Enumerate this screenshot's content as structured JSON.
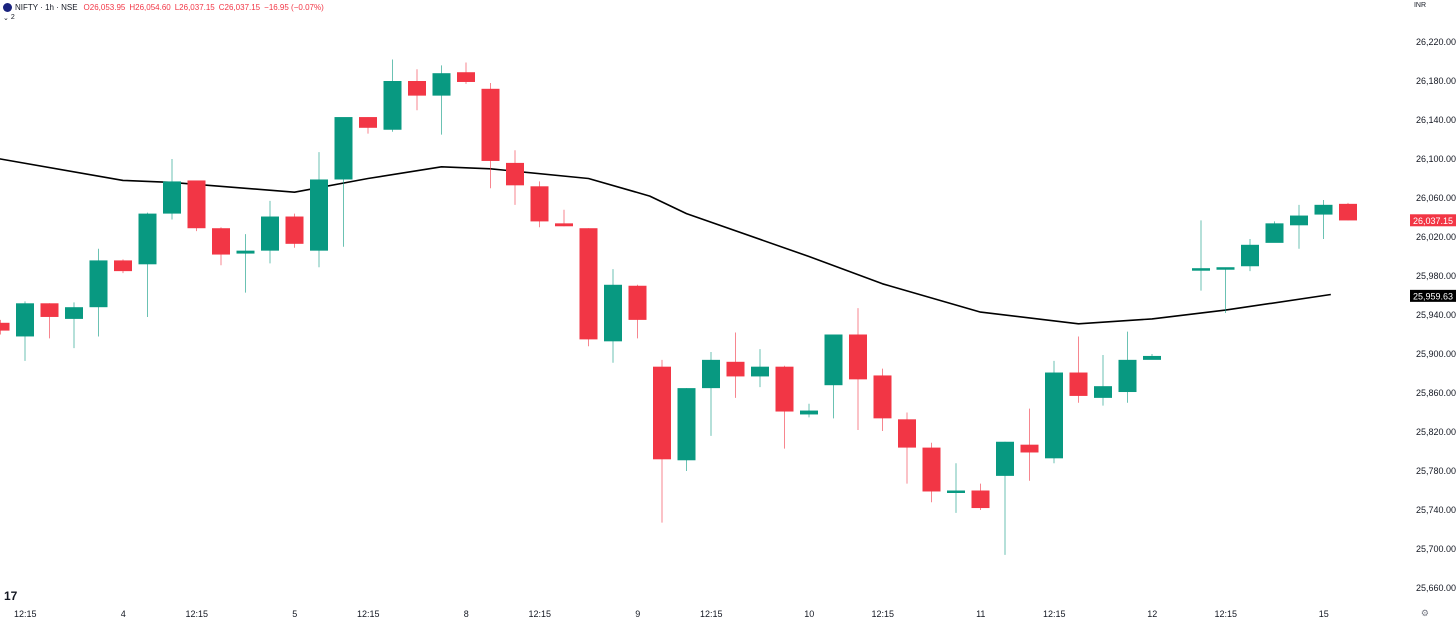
{
  "header": {
    "symbol": "NIFTY · 1h · NSE",
    "open": "O26,053.95",
    "high": "H26,054.60",
    "low": "L26,037.15",
    "close": "C26,037.15",
    "change": "−16.95 (−0.07%)",
    "indicator_count": "2",
    "currency": "INR"
  },
  "colors": {
    "up": "#089981",
    "down": "#f23645",
    "ma": "#000000",
    "axis_text": "#131722"
  },
  "chart_data": {
    "type": "candlestick",
    "y_axis": {
      "min": 25645,
      "max": 26240,
      "ticks": [
        25660,
        25700,
        25740,
        25780,
        25820,
        25860,
        25900,
        25940,
        25980,
        26020,
        26060,
        26100,
        26140,
        26180,
        26220
      ],
      "tick_labels": [
        "25,660.00",
        "25,700.00",
        "25,740.00",
        "25,780.00",
        "25,820.00",
        "25,860.00",
        "25,900.00",
        "25,940.00",
        "25,980.00",
        "26,020.00",
        "26,060.00",
        "26,100.00",
        "26,140.00",
        "26,180.00",
        "26,220.00"
      ]
    },
    "x_axis": {
      "labels": [
        {
          "text": "12:15",
          "at": 1.5
        },
        {
          "text": "4",
          "at": 5.5
        },
        {
          "text": "12:15",
          "at": 8.5
        },
        {
          "text": "5",
          "at": 12.5
        },
        {
          "text": "12:15",
          "at": 15.5
        },
        {
          "text": "8",
          "at": 19.5
        },
        {
          "text": "12:15",
          "at": 22.5
        },
        {
          "text": "9",
          "at": 26.5
        },
        {
          "text": "12:15",
          "at": 29.5
        },
        {
          "text": "10",
          "at": 33.5
        },
        {
          "text": "12:15",
          "at": 36.5
        },
        {
          "text": "11",
          "at": 40.5
        },
        {
          "text": "12:15",
          "at": 43.5
        },
        {
          "text": "12",
          "at": 47.5
        },
        {
          "text": "12:15",
          "at": 50.5
        },
        {
          "text": "15",
          "at": 54.5
        }
      ]
    },
    "candles": [
      {
        "o": 25932,
        "h": 25935,
        "l": 25920,
        "c": 25924
      },
      {
        "o": 25918,
        "h": 25954,
        "l": 25893,
        "c": 25952
      },
      {
        "o": 25952,
        "h": 25952,
        "l": 25916,
        "c": 25938
      },
      {
        "o": 25936,
        "h": 25953,
        "l": 25906,
        "c": 25948
      },
      {
        "o": 25948,
        "h": 26008,
        "l": 25918,
        "c": 25996
      },
      {
        "o": 25996,
        "h": 25997,
        "l": 25983,
        "c": 25985
      },
      {
        "o": 25992,
        "h": 26045,
        "l": 25938,
        "c": 26044
      },
      {
        "o": 26044,
        "h": 26100,
        "l": 26038,
        "c": 26077
      },
      {
        "o": 26078,
        "h": 26078,
        "l": 26026,
        "c": 26029
      },
      {
        "o": 26029,
        "h": 26030,
        "l": 25991,
        "c": 26002
      },
      {
        "o": 26003,
        "h": 26023,
        "l": 25963,
        "c": 26006
      },
      {
        "o": 26006,
        "h": 26057,
        "l": 25993,
        "c": 26041
      },
      {
        "o": 26041,
        "h": 26044,
        "l": 26009,
        "c": 26013
      },
      {
        "o": 26006,
        "h": 26107,
        "l": 25989,
        "c": 26079
      },
      {
        "o": 26079,
        "h": 26142,
        "l": 26010,
        "c": 26143
      },
      {
        "o": 26143,
        "h": 26143,
        "l": 26126,
        "c": 26132
      },
      {
        "o": 26130,
        "h": 26202,
        "l": 26128,
        "c": 26180
      },
      {
        "o": 26180,
        "h": 26192,
        "l": 26150,
        "c": 26165
      },
      {
        "o": 26165,
        "h": 26196,
        "l": 26125,
        "c": 26188
      },
      {
        "o": 26189,
        "h": 26199,
        "l": 26177,
        "c": 26179
      },
      {
        "o": 26172,
        "h": 26178,
        "l": 26070,
        "c": 26098
      },
      {
        "o": 26096,
        "h": 26109,
        "l": 26053,
        "c": 26073
      },
      {
        "o": 26072,
        "h": 26077,
        "l": 26030,
        "c": 26036
      },
      {
        "o": 26034,
        "h": 26048,
        "l": 26031,
        "c": 26031
      },
      {
        "o": 26029,
        "h": 26029,
        "l": 25908,
        "c": 25915
      },
      {
        "o": 25913,
        "h": 25987,
        "l": 25891,
        "c": 25971
      },
      {
        "o": 25970,
        "h": 25971,
        "l": 25916,
        "c": 25935
      },
      {
        "o": 25887,
        "h": 25894,
        "l": 25727,
        "c": 25792
      },
      {
        "o": 25791,
        "h": 25865,
        "l": 25780,
        "c": 25865
      },
      {
        "o": 25865,
        "h": 25902,
        "l": 25816,
        "c": 25894
      },
      {
        "o": 25892,
        "h": 25922,
        "l": 25855,
        "c": 25877
      },
      {
        "o": 25877,
        "h": 25905,
        "l": 25866,
        "c": 25887
      },
      {
        "o": 25887,
        "h": 25888,
        "l": 25803,
        "c": 25841
      },
      {
        "o": 25838,
        "h": 25849,
        "l": 25835,
        "c": 25842
      },
      {
        "o": 25868,
        "h": 25919,
        "l": 25834,
        "c": 25920
      },
      {
        "o": 25920,
        "h": 25947,
        "l": 25822,
        "c": 25874
      },
      {
        "o": 25878,
        "h": 25885,
        "l": 25821,
        "c": 25834
      },
      {
        "o": 25833,
        "h": 25840,
        "l": 25767,
        "c": 25804
      },
      {
        "o": 25804,
        "h": 25809,
        "l": 25748,
        "c": 25759
      },
      {
        "o": 25759,
        "h": 25788,
        "l": 25737,
        "c": 25760
      },
      {
        "o": 25760,
        "h": 25767,
        "l": 25740,
        "c": 25742
      },
      {
        "o": 25775,
        "h": 25810,
        "l": 25694,
        "c": 25810
      },
      {
        "o": 25807,
        "h": 25844,
        "l": 25770,
        "c": 25799
      },
      {
        "o": 25793,
        "h": 25893,
        "l": 25788,
        "c": 25881
      },
      {
        "o": 25881,
        "h": 25918,
        "l": 25850,
        "c": 25857
      },
      {
        "o": 25855,
        "h": 25899,
        "l": 25847,
        "c": 25867
      },
      {
        "o": 25861,
        "h": 25923,
        "l": 25850,
        "c": 25894
      },
      {
        "o": 25894,
        "h": 25900,
        "l": 25895,
        "c": 25898
      },
      null,
      {
        "o": 25987,
        "h": 26037,
        "l": 25965,
        "c": 25988
      },
      {
        "o": 25987,
        "h": 25988,
        "l": 25942,
        "c": 25989
      },
      {
        "o": 25990,
        "h": 26018,
        "l": 25985,
        "c": 26012
      },
      {
        "o": 26014,
        "h": 26036,
        "l": 26015,
        "c": 26034
      },
      {
        "o": 26032,
        "h": 26053,
        "l": 26008,
        "c": 26042
      },
      {
        "o": 26043,
        "h": 26058,
        "l": 26018,
        "c": 26053
      },
      {
        "o": 26054,
        "h": 26055,
        "l": 26037,
        "c": 26037
      }
    ],
    "ma": {
      "x": [
        -1,
        0,
        5,
        7,
        12,
        15,
        18,
        20,
        24,
        26.5,
        28,
        33,
        36,
        40,
        44,
        47,
        50,
        54.3
      ],
      "y": [
        26103,
        26100,
        26078,
        26076,
        26066,
        26080,
        26092,
        26090,
        26080,
        26062,
        26044,
        26000,
        25972,
        25943,
        25931,
        25936,
        25945,
        25961
      ]
    },
    "price_labels": [
      {
        "text": "26,037.15",
        "value": 26037.15,
        "color": "#f23645"
      },
      {
        "text": "25,959.63",
        "value": 25959.63,
        "color": "#000000"
      }
    ]
  }
}
